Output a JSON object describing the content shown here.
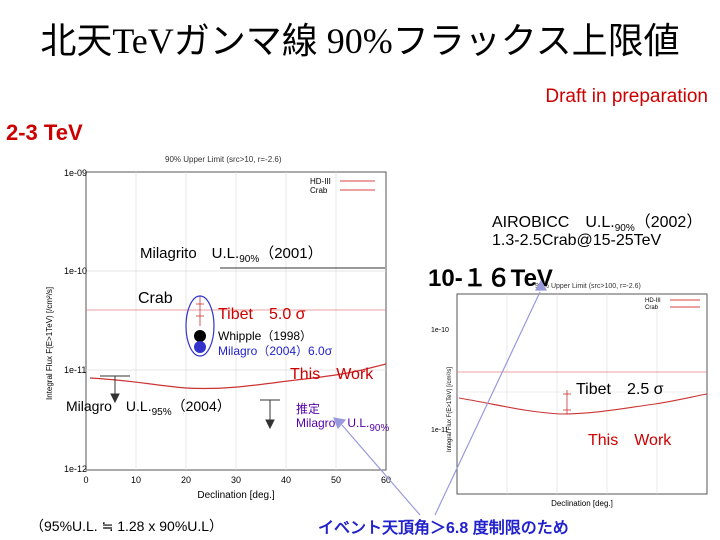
{
  "title": "北天TeVガンマ線 90%フラックス上限値",
  "draft": "Draft in preparation",
  "energy_range": "2-3 TeV",
  "left_plot": {
    "header": "90% Upper Limit (src>10, r=-2.6)",
    "ylabel": "Integral Flux F(E>1TeV) [/cm²/s]",
    "xlabel": "Declination [deg.]",
    "y_ticks": [
      "1e-09",
      "1e-10",
      "1e-11",
      "1e-12"
    ],
    "x_ticks": [
      "0",
      "10",
      "20",
      "30",
      "40",
      "50",
      "60"
    ],
    "legend": [
      "HD-III",
      "Crab"
    ]
  },
  "right_plot": {
    "header": "90% Upper Limit (src>100, r=-2.6)",
    "ylabel": "Integral Flux F(E>1TeV) [/cm²/s]",
    "xlabel": "Declination [deg.]",
    "y_ticks": [
      "1e-10",
      "1e-11"
    ],
    "legend": [
      "HD-III",
      "Crab"
    ]
  },
  "annotations": {
    "milagrito": "Milagrito　U.L.",
    "milagrito_sub": "90%",
    "milagrito_year": "（2001）",
    "crab": "Crab",
    "tibet_5": "Tibet　5.0 σ",
    "whipple": "Whipple（1998）",
    "milagro_2004": "Milagro（2004）6.0σ",
    "this_work_left": "This　Work",
    "milagro_ul": "Milagro　U.L.",
    "milagro_ul_sub": "95%",
    "milagro_ul_year": "（2004）",
    "suitei": "推定",
    "milagro_est": "Milagro　U.L.",
    "milagro_est_sub": "90%",
    "airobicc_line1": "AIROBICC　U.L.",
    "airobicc_sub": "90%",
    "airobicc_year": "（2002）",
    "airobicc_line2": "1.3-2.5Crab@15-25TeV",
    "range_10_16": "10-１６TeV",
    "tibet_25": "Tibet　2.5 σ",
    "this_work_right": "This　Work",
    "footnote": "（95%U.L. ≒ 1.28 x 90%U.L）",
    "zenith_note": "イベント天頂角＞6.8 度制限のため"
  },
  "colors": {
    "accent_red": "#cc0000",
    "blue": "#2222cc",
    "purple": "#5500aa",
    "arrow_gray": "#9999dd"
  }
}
